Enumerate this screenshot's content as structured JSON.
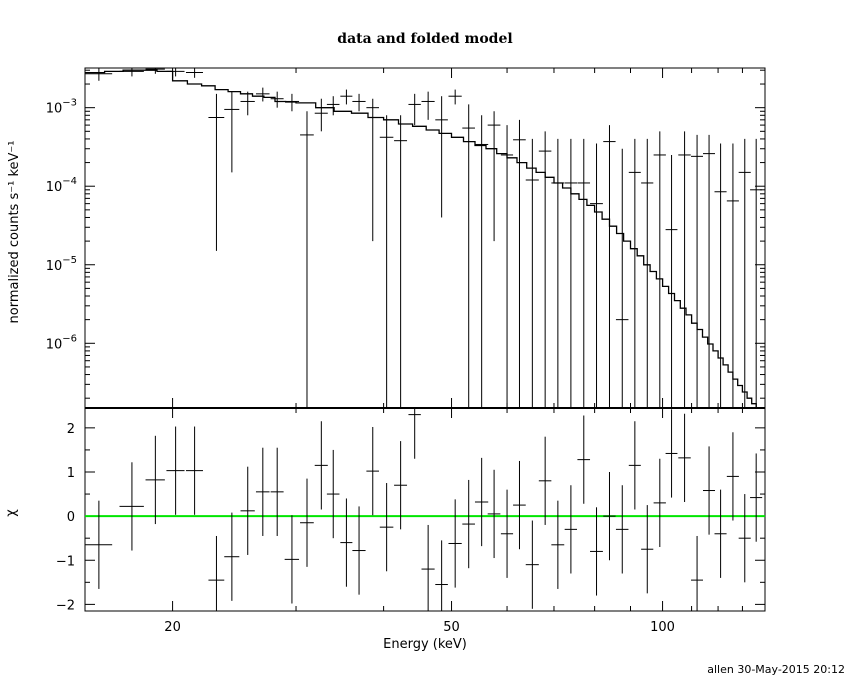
{
  "chart_data": [
    {
      "type": "scatter",
      "title": "data and folded model",
      "ylabel": "normalized counts s⁻¹ keV⁻¹",
      "xscale": "log",
      "yscale": "log",
      "xlim": [
        15,
        140
      ],
      "ylim": [
        1.5e-07,
        0.0032
      ],
      "yticks": [
        {
          "value": 0.001,
          "base": "10",
          "exp": "−3"
        },
        {
          "value": 0.0001,
          "base": "10",
          "exp": "−4"
        },
        {
          "value": 1e-05,
          "base": "10",
          "exp": "−5"
        },
        {
          "value": 1e-06,
          "base": "10",
          "exp": "−6"
        }
      ],
      "series": [
        {
          "kind": "data",
          "x": [
            15.7,
            17.5,
            18.9,
            20.2,
            21.5,
            23.1,
            24.3,
            25.6,
            26.9,
            28.2,
            29.6,
            31.1,
            32.6,
            33.9,
            35.4,
            36.9,
            38.6,
            40.4,
            42.3,
            44.3,
            46.3,
            48.4,
            50.6,
            52.9,
            55.2,
            57.5,
            60,
            62.5,
            65.2,
            68,
            70.9,
            74,
            77.2,
            80.5,
            84,
            87.6,
            91.3,
            95.1,
            99.1,
            103,
            107.5,
            112,
            116.5,
            121,
            126,
            131,
            136
          ],
          "y": [
            0.0027,
            0.0029,
            0.0031,
            0.0029,
            0.0028,
            0.00075,
            0.00095,
            0.0012,
            0.0015,
            0.0013,
            0.0012,
            0.00045,
            0.00085,
            0.0011,
            0.0014,
            0.0012,
            0.001,
            0.00042,
            0.00038,
            0.0011,
            0.0012,
            0.0007,
            0.0014,
            0.00055,
            0.00034,
            0.0006,
            0.00025,
            0.00039,
            0.00012,
            0.00028,
            0.00011,
            0.00011,
            0.00011,
            6e-05,
            0.00037,
            2e-06,
            0.00015,
            0.00011,
            0.00025,
            2.8e-05,
            0.00025,
            0.00024,
            0.00026,
            8.5e-05,
            6.5e-05,
            0.00015,
            9e-05
          ],
          "xerr": [
            0.7,
            0.7,
            0.6,
            0.6,
            0.6,
            0.6,
            0.6,
            0.6,
            0.6,
            0.6,
            0.7,
            0.7,
            0.7,
            0.7,
            0.7,
            0.8,
            0.8,
            0.9,
            0.9,
            0.9,
            1.0,
            1.0,
            1.1,
            1.1,
            1.2,
            1.2,
            1.2,
            1.3,
            1.4,
            1.4,
            1.5,
            1.5,
            1.6,
            1.7,
            1.7,
            1.8,
            1.8,
            1.9,
            2.0,
            2.0,
            2.2,
            2.2,
            2.3,
            2.4,
            2.5,
            2.6,
            2.7
          ],
          "ylow": [
            0.0022,
            0.0025,
            0.0027,
            0.0025,
            0.0024,
            1.5e-05,
            0.00015,
            0.0008,
            0.0012,
            0.001,
            0.0009,
            1e-09,
            0.0005,
            0.0008,
            0.0011,
            0.0009,
            2e-05,
            1e-09,
            1e-09,
            0.0006,
            0.0007,
            4e-05,
            0.0011,
            1e-09,
            1e-09,
            2e-05,
            1e-09,
            1e-09,
            1e-09,
            1e-09,
            1e-09,
            1e-09,
            1e-09,
            1e-09,
            1e-09,
            1e-09,
            1e-09,
            1e-09,
            1e-09,
            1e-09,
            1e-09,
            1e-09,
            1e-09,
            1e-09,
            1e-09,
            1e-09,
            1e-09
          ],
          "yhigh": [
            0.0032,
            0.0032,
            0.0032,
            0.0032,
            0.0032,
            0.0015,
            0.0016,
            0.0016,
            0.0018,
            0.0016,
            0.0015,
            0.0009,
            0.0013,
            0.0014,
            0.0017,
            0.0015,
            0.0013,
            0.0008,
            0.0008,
            0.0015,
            0.0016,
            0.0014,
            0.0017,
            0.0011,
            0.0008,
            0.0009,
            0.0006,
            0.0007,
            0.0004,
            0.0005,
            0.0004,
            0.0004,
            0.0004,
            0.00035,
            0.0006,
            0.0003,
            0.0004,
            0.0004,
            0.0005,
            0.00025,
            0.0005,
            0.00045,
            0.00045,
            0.00035,
            0.00035,
            0.0004,
            0.0004
          ]
        },
        {
          "kind": "model",
          "x": [
            15,
            16,
            17,
            18,
            19,
            20,
            21,
            22,
            23,
            24,
            25,
            26,
            27,
            28,
            29,
            30,
            32,
            34,
            36,
            38,
            40,
            42,
            44,
            46,
            48,
            50,
            52,
            54,
            56,
            58,
            60,
            62,
            64,
            66,
            68,
            70,
            72,
            74,
            76,
            78,
            80,
            82,
            84,
            86,
            88,
            90,
            92,
            94,
            96,
            98,
            100,
            102,
            104,
            106,
            108,
            110,
            112,
            114,
            116,
            118,
            120,
            122,
            124,
            126,
            128,
            130,
            132,
            134,
            136,
            138,
            140
          ],
          "y": [
            0.0028,
            0.0029,
            0.003,
            0.003,
            0.0029,
            0.0022,
            0.002,
            0.0019,
            0.0017,
            0.0016,
            0.0015,
            0.0014,
            0.00135,
            0.0012,
            0.00118,
            0.00115,
            0.001,
            0.0009,
            0.00085,
            0.00075,
            0.0007,
            0.00062,
            0.00058,
            0.00052,
            0.00047,
            0.00042,
            0.00037,
            0.00033,
            0.0003,
            0.00026,
            0.00023,
            0.0002,
            0.00017,
            0.00015,
            0.00013,
            0.00011,
            9.5e-05,
            8e-05,
            6.8e-05,
            5.7e-05,
            4.7e-05,
            3.8e-05,
            3.1e-05,
            2.5e-05,
            2e-05,
            1.6e-05,
            1.3e-05,
            1e-05,
            8.2e-06,
            6.6e-06,
            5.3e-06,
            4.3e-06,
            3.5e-06,
            2.8e-06,
            2.3e-06,
            1.8e-06,
            1.5e-06,
            1.2e-06,
            9.8e-07,
            8e-07,
            6.5e-07,
            5.3e-07,
            4.3e-07,
            3.5e-07,
            2.9e-07,
            2.4e-07,
            2e-07,
            1.7e-07,
            1.5e-07,
            1.3e-07,
            1.2e-07
          ]
        }
      ]
    },
    {
      "type": "scatter",
      "xlabel": "Energy (keV)",
      "ylabel": "χ",
      "xscale": "log",
      "xlim": [
        15,
        140
      ],
      "ylim": [
        -2.15,
        2.45
      ],
      "xticks": [
        "20",
        "50",
        "100"
      ],
      "yticks": [
        "2",
        "1",
        "0",
        "−1",
        "−2"
      ],
      "zero_line": 0,
      "zero_line_color": "#00e600",
      "series": [
        {
          "kind": "residuals",
          "x": [
            15.7,
            17.5,
            18.9,
            20.2,
            21.5,
            23.1,
            24.3,
            25.6,
            26.9,
            28.2,
            29.6,
            31.1,
            32.6,
            33.9,
            35.4,
            36.9,
            38.6,
            40.4,
            42.3,
            44.3,
            46.3,
            48.4,
            50.6,
            52.9,
            55.2,
            57.5,
            60,
            62.5,
            65.2,
            68,
            70.9,
            74,
            77.2,
            80.5,
            84,
            87.6,
            91.3,
            95.1,
            99.1,
            103,
            107.5,
            112,
            116.5,
            121,
            126,
            131,
            136
          ],
          "y": [
            -0.65,
            0.22,
            0.82,
            1.03,
            1.03,
            -1.45,
            -0.92,
            0.12,
            0.55,
            0.55,
            -0.98,
            -0.15,
            1.15,
            0.5,
            -0.6,
            -0.78,
            1.02,
            -0.25,
            0.7,
            2.3,
            -1.2,
            -1.55,
            -0.62,
            -0.18,
            0.32,
            0.05,
            -0.4,
            0.25,
            -1.1,
            0.8,
            -0.65,
            -0.3,
            1.28,
            -0.8,
            0.0,
            -0.3,
            1.15,
            -0.75,
            0.3,
            1.42,
            1.32,
            -1.45,
            0.58,
            -0.4,
            0.9,
            -0.5,
            0.42
          ],
          "xerr": [
            0.7,
            0.7,
            0.6,
            0.6,
            0.6,
            0.6,
            0.6,
            0.6,
            0.6,
            0.6,
            0.7,
            0.7,
            0.7,
            0.7,
            0.7,
            0.8,
            0.8,
            0.9,
            0.9,
            0.9,
            1.0,
            1.0,
            1.1,
            1.1,
            1.2,
            1.2,
            1.2,
            1.3,
            1.4,
            1.4,
            1.5,
            1.5,
            1.6,
            1.7,
            1.7,
            1.8,
            1.8,
            1.9,
            2.0,
            2.0,
            2.2,
            2.2,
            2.3,
            2.4,
            2.5,
            2.6,
            2.7
          ],
          "yerr": [
            1.0
          ]
        }
      ]
    }
  ],
  "footer": {
    "stamp": "allen 30-May-2015 20:12"
  }
}
